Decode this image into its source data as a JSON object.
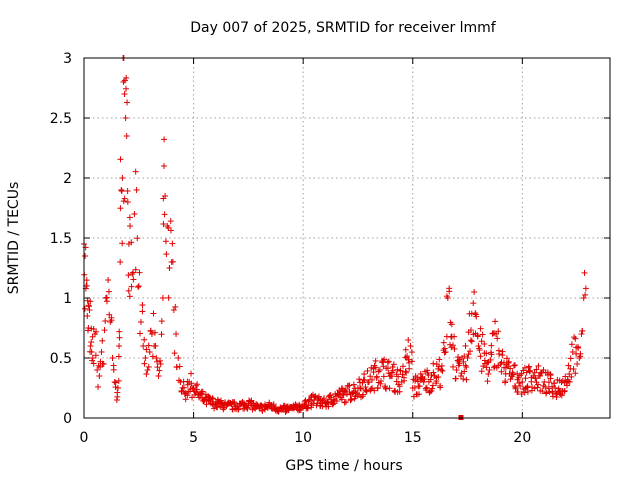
{
  "chart_data": {
    "type": "scatter",
    "title": "Day 007 of 2025, SRMTID for receiver lmmf",
    "xlabel": "GPS time / hours",
    "ylabel": "SRMTID / TECUs",
    "xlim": [
      0,
      24
    ],
    "ylim": [
      0,
      3
    ],
    "xticks": [
      0,
      5,
      10,
      15,
      20
    ],
    "xtick_labels": [
      "0",
      "5",
      "10",
      "15",
      "20"
    ],
    "yticks": [
      0,
      0.5,
      1,
      1.5,
      2,
      2.5,
      3
    ],
    "ytick_labels": [
      "0",
      "0.5",
      "1",
      "1.5",
      "2",
      "2.5",
      "3"
    ],
    "grid": true,
    "marker": "+",
    "color": "#e00000",
    "series": [
      {
        "name": "SRMTID",
        "x": [
          0.0,
          0.05,
          0.1,
          0.15,
          0.2,
          0.25,
          0.3,
          0.35,
          0.4,
          0.5,
          0.6,
          0.7,
          0.8,
          0.9,
          1.0,
          1.1,
          1.2,
          1.3,
          1.4,
          1.5,
          1.55,
          1.6,
          1.65,
          1.7,
          1.75,
          1.8,
          1.85,
          1.9,
          1.95,
          2.0,
          2.05,
          2.1,
          2.2,
          2.3,
          2.4,
          2.5,
          2.6,
          2.7,
          2.8,
          2.9,
          3.0,
          3.1,
          3.2,
          3.3,
          3.4,
          3.5,
          3.6,
          3.65,
          3.7,
          3.8,
          3.9,
          4.0,
          4.1,
          4.2,
          4.3,
          4.4,
          4.5,
          4.6,
          4.8,
          5.0,
          5.2,
          5.5,
          6.0,
          6.5,
          7.0,
          7.5,
          8.0,
          8.5,
          9.0,
          9.5,
          10.0,
          10.5,
          11.0,
          11.5,
          12.0,
          12.5,
          13.0,
          13.5,
          14.0,
          14.5,
          14.9,
          15.0,
          15.5,
          16.0,
          16.3,
          16.5,
          16.6,
          17.0,
          17.2,
          17.5,
          17.8,
          18.0,
          18.5,
          18.8,
          19.0,
          19.5,
          20.0,
          20.5,
          21.0,
          21.5,
          22.0,
          22.3,
          22.5,
          22.6,
          22.7,
          22.8,
          22.9
        ],
        "y": [
          1.45,
          1.35,
          1.1,
          0.85,
          0.75,
          0.9,
          0.6,
          0.55,
          0.5,
          0.7,
          0.4,
          0.35,
          0.55,
          0.45,
          1.0,
          1.15,
          0.8,
          0.5,
          0.3,
          0.15,
          0.25,
          0.6,
          1.3,
          1.9,
          2.0,
          2.8,
          2.7,
          2.5,
          2.35,
          1.8,
          1.45,
          1.6,
          1.2,
          1.7,
          1.9,
          1.1,
          0.8,
          0.6,
          0.5,
          0.4,
          0.55,
          0.7,
          0.6,
          0.5,
          0.35,
          0.45,
          1.0,
          2.1,
          1.85,
          1.6,
          1.25,
          1.3,
          0.9,
          0.7,
          0.5,
          0.3,
          0.25,
          0.2,
          0.3,
          0.25,
          0.2,
          0.15,
          0.12,
          0.1,
          0.1,
          0.12,
          0.08,
          0.1,
          0.07,
          0.08,
          0.1,
          0.15,
          0.12,
          0.18,
          0.2,
          0.25,
          0.3,
          0.4,
          0.35,
          0.3,
          0.6,
          0.25,
          0.3,
          0.35,
          0.4,
          0.55,
          1.0,
          0.4,
          0.35,
          0.5,
          1.05,
          0.6,
          0.4,
          0.7,
          0.45,
          0.35,
          0.3,
          0.35,
          0.3,
          0.25,
          0.3,
          0.55,
          0.45,
          0.5,
          0.7,
          1.0,
          1.08
        ]
      }
    ],
    "outlier": {
      "x": 17.2,
      "y": 0.0
    }
  }
}
